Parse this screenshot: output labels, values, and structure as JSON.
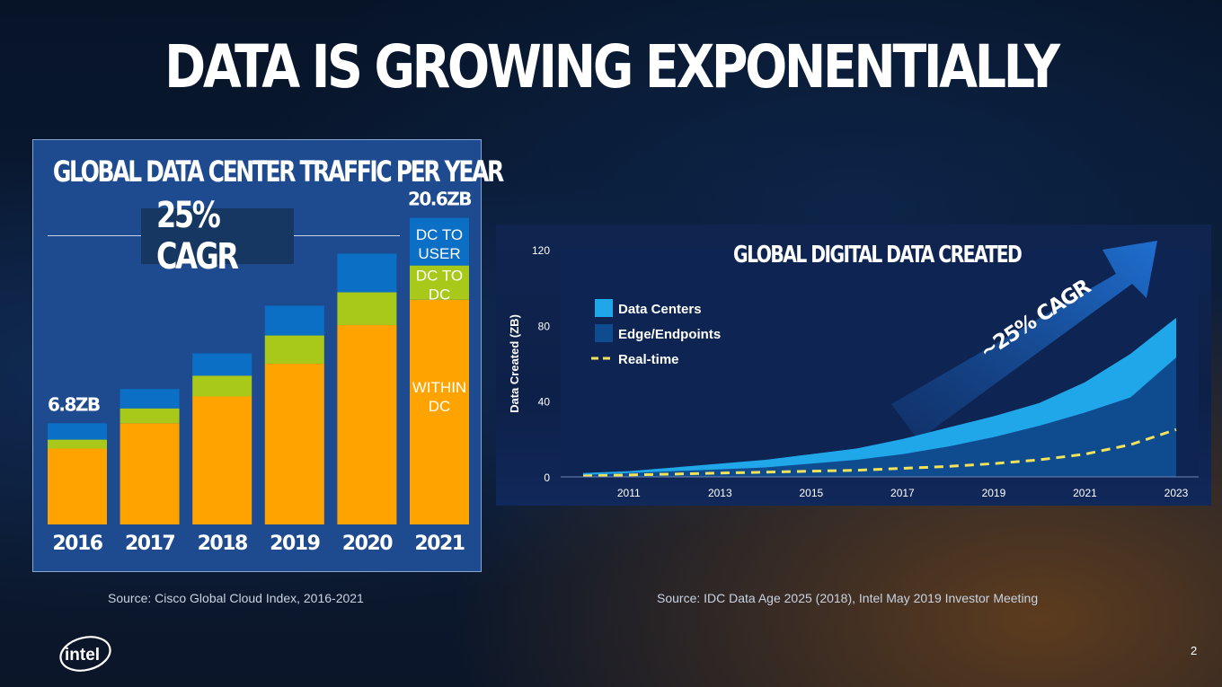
{
  "slide": {
    "title": "DATA IS GROWING EXPONENTIALLY",
    "page_number": "2",
    "logo_text": "intel"
  },
  "left_chart_text": {
    "title": "GLOBAL DATA CENTER TRAFFIC PER YEAR",
    "cagr": "25% CAGR",
    "first_total": "6.8ZB",
    "last_total": "20.6ZB",
    "segment_labels": [
      "DC TO USER",
      "DC TO DC",
      "WITHIN DC"
    ],
    "source": "Source: Cisco Global Cloud Index, 2016-2021"
  },
  "right_chart_text": {
    "title": "GLOBAL DIGITAL DATA CREATED",
    "ylabel": "Data Created (ZB)",
    "arrow_label": "~25% CAGR",
    "legend": [
      "Data Centers",
      "Edge/Endpoints",
      "Real-time"
    ],
    "source": "Source: IDC Data Age 2025 (2018), Intel May 2019 Investor Meeting"
  },
  "colors": {
    "within_dc": "#FFA300",
    "dc_to_dc": "#A8C81A",
    "dc_to_user": "#0B6FC6",
    "data_centers": "#1FA7EA",
    "edge": "#0F4C8F",
    "realtime": "#F3E35A"
  },
  "chart_data": [
    {
      "type": "bar",
      "title": "GLOBAL DATA CENTER TRAFFIC PER YEAR",
      "categories": [
        "2016",
        "2017",
        "2018",
        "2019",
        "2020",
        "2021"
      ],
      "series": [
        {
          "name": "WITHIN DC",
          "values": [
            5.1,
            6.8,
            8.6,
            10.8,
            13.4,
            15.1
          ]
        },
        {
          "name": "DC TO DC",
          "values": [
            0.6,
            1.0,
            1.4,
            1.9,
            2.2,
            2.3
          ]
        },
        {
          "name": "DC TO USER",
          "values": [
            1.1,
            1.3,
            1.5,
            2.0,
            2.6,
            3.2
          ]
        }
      ],
      "ylim": [
        0,
        21
      ]
    },
    {
      "type": "area",
      "title": "GLOBAL DIGITAL DATA CREATED",
      "ylabel": "Data Created (ZB)",
      "x": [
        "2010",
        "2011",
        "2012",
        "2013",
        "2014",
        "2015",
        "2016",
        "2017",
        "2018",
        "2019",
        "2020",
        "2021",
        "2022",
        "2023"
      ],
      "x_ticks": [
        "2011",
        "2013",
        "2015",
        "2017",
        "2019",
        "2021",
        "2023"
      ],
      "y_ticks": [
        0,
        40,
        80,
        120
      ],
      "ylim": [
        0,
        120
      ],
      "series": [
        {
          "name": "Data Centers",
          "values": [
            2,
            3,
            5,
            7,
            9,
            12,
            15,
            20,
            26,
            32,
            39,
            50,
            65,
            84
          ]
        },
        {
          "name": "Edge/Endpoints",
          "values": [
            1,
            2,
            3,
            4,
            5,
            7,
            9,
            12,
            16,
            21,
            27,
            34,
            42,
            63
          ]
        },
        {
          "name": "Real-time",
          "values": [
            0.5,
            1,
            1.5,
            2,
            2.5,
            3,
            3.5,
            4.5,
            5.5,
            7,
            9,
            12,
            17,
            25
          ]
        }
      ],
      "legend_position": "top-left"
    }
  ]
}
